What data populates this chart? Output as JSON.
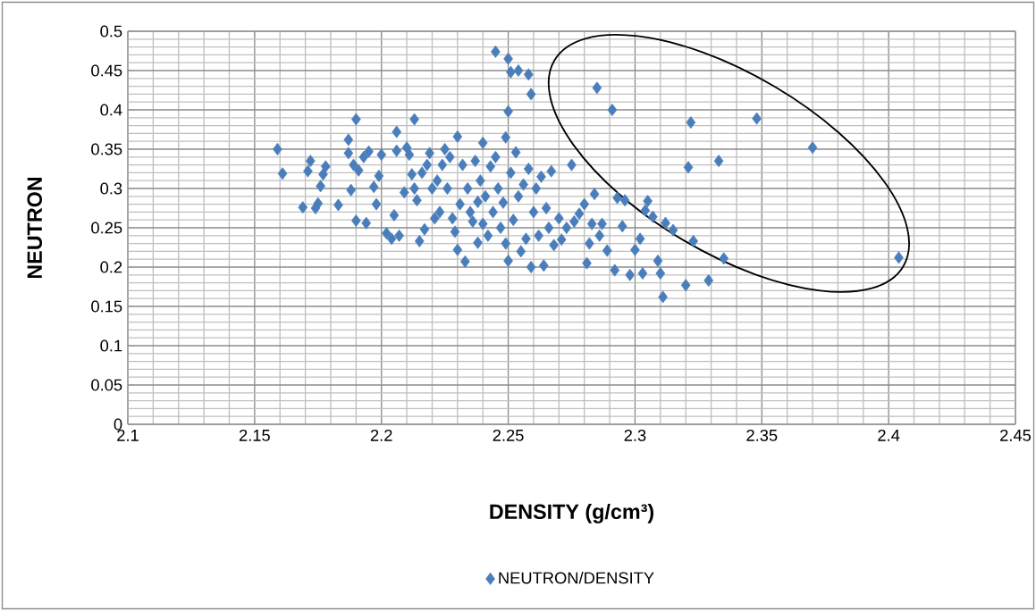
{
  "chart_data": {
    "type": "scatter",
    "xlabel": "DENSITY (g/cm³)",
    "ylabel": "NEUTRON",
    "xlim": [
      2.1,
      2.45
    ],
    "xticks": [
      2.1,
      2.15,
      2.2,
      2.25,
      2.3,
      2.35,
      2.4,
      2.45
    ],
    "ylim": [
      0,
      0.5
    ],
    "yticks": [
      0,
      0.05,
      0.1,
      0.15,
      0.2,
      0.25,
      0.3,
      0.35,
      0.4,
      0.45,
      0.5
    ],
    "grid": true,
    "legend": "bottom",
    "marker": "diamond",
    "series": [
      {
        "name": "NEUTRON/DENSITY",
        "color": "#4a7ebb",
        "x": [
          2.159,
          2.161,
          2.169,
          2.171,
          2.172,
          2.174,
          2.175,
          2.176,
          2.177,
          2.178,
          2.183,
          2.187,
          2.187,
          2.188,
          2.189,
          2.19,
          2.19,
          2.191,
          2.193,
          2.194,
          2.195,
          2.197,
          2.198,
          2.199,
          2.2,
          2.202,
          2.204,
          2.205,
          2.206,
          2.206,
          2.207,
          2.209,
          2.21,
          2.211,
          2.212,
          2.213,
          2.213,
          2.214,
          2.215,
          2.216,
          2.217,
          2.218,
          2.219,
          2.22,
          2.221,
          2.222,
          2.223,
          2.224,
          2.225,
          2.226,
          2.227,
          2.228,
          2.229,
          2.23,
          2.23,
          2.231,
          2.232,
          2.233,
          2.234,
          2.235,
          2.236,
          2.237,
          2.238,
          2.238,
          2.239,
          2.24,
          2.24,
          2.241,
          2.242,
          2.243,
          2.244,
          2.245,
          2.245,
          2.246,
          2.247,
          2.248,
          2.249,
          2.249,
          2.25,
          2.25,
          2.25,
          2.251,
          2.251,
          2.252,
          2.253,
          2.254,
          2.254,
          2.255,
          2.256,
          2.257,
          2.258,
          2.258,
          2.259,
          2.259,
          2.26,
          2.261,
          2.262,
          2.263,
          2.264,
          2.265,
          2.266,
          2.267,
          2.268,
          2.27,
          2.271,
          2.273,
          2.275,
          2.276,
          2.278,
          2.28,
          2.281,
          2.282,
          2.283,
          2.284,
          2.285,
          2.286,
          2.287,
          2.289,
          2.291,
          2.292,
          2.293,
          2.295,
          2.296,
          2.298,
          2.3,
          2.302,
          2.303,
          2.304,
          2.305,
          2.307,
          2.309,
          2.31,
          2.311,
          2.312,
          2.315,
          2.32,
          2.321,
          2.322,
          2.323,
          2.329,
          2.333,
          2.335,
          2.348,
          2.37,
          2.404
        ],
        "values": [
          0.35,
          0.319,
          0.276,
          0.322,
          0.335,
          0.275,
          0.281,
          0.303,
          0.318,
          0.328,
          0.279,
          0.345,
          0.362,
          0.298,
          0.33,
          0.388,
          0.259,
          0.323,
          0.34,
          0.256,
          0.347,
          0.302,
          0.28,
          0.316,
          0.343,
          0.243,
          0.236,
          0.266,
          0.372,
          0.348,
          0.24,
          0.295,
          0.352,
          0.343,
          0.318,
          0.388,
          0.3,
          0.285,
          0.233,
          0.32,
          0.248,
          0.33,
          0.345,
          0.3,
          0.262,
          0.31,
          0.27,
          0.33,
          0.35,
          0.3,
          0.34,
          0.262,
          0.245,
          0.366,
          0.222,
          0.28,
          0.33,
          0.207,
          0.3,
          0.27,
          0.258,
          0.335,
          0.283,
          0.231,
          0.31,
          0.358,
          0.255,
          0.29,
          0.24,
          0.328,
          0.27,
          0.474,
          0.34,
          0.3,
          0.25,
          0.282,
          0.365,
          0.23,
          0.398,
          0.465,
          0.208,
          0.448,
          0.32,
          0.26,
          0.346,
          0.45,
          0.29,
          0.22,
          0.305,
          0.236,
          0.445,
          0.325,
          0.42,
          0.2,
          0.27,
          0.3,
          0.24,
          0.315,
          0.202,
          0.275,
          0.25,
          0.322,
          0.228,
          0.262,
          0.235,
          0.25,
          0.33,
          0.258,
          0.268,
          0.28,
          0.205,
          0.23,
          0.255,
          0.293,
          0.428,
          0.24,
          0.255,
          0.221,
          0.4,
          0.196,
          0.288,
          0.252,
          0.285,
          0.19,
          0.222,
          0.236,
          0.192,
          0.272,
          0.284,
          0.264,
          0.208,
          0.192,
          0.162,
          0.256,
          0.247,
          0.177,
          0.327,
          0.384,
          0.233,
          0.183,
          0.335,
          0.211,
          0.389,
          0.352,
          0.212
        ]
      }
    ]
  }
}
